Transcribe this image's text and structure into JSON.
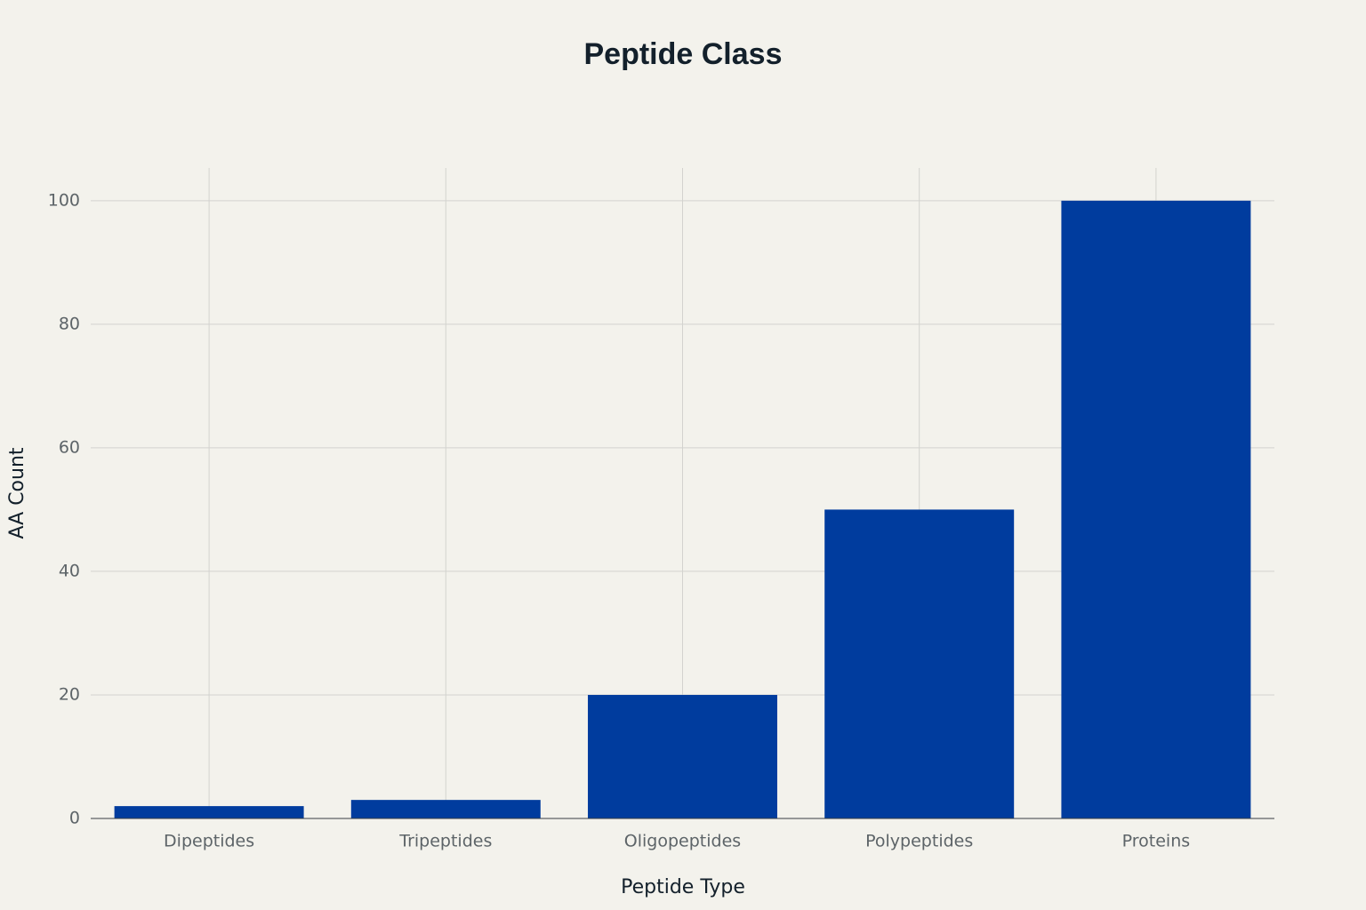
{
  "chart_data": {
    "type": "bar",
    "title": "Peptide Class",
    "x_label": "Peptide Type",
    "y_label": "AA Count",
    "categories": [
      "Dipeptides",
      "Tripeptides",
      "Oligopeptides",
      "Polypeptides",
      "Proteins"
    ],
    "values": [
      2,
      3,
      20,
      50,
      100
    ],
    "color": "#003c9e",
    "ylim": [
      0,
      105.3
    ],
    "yticks": [
      0,
      20,
      40,
      60,
      80,
      100
    ],
    "grid": true
  }
}
